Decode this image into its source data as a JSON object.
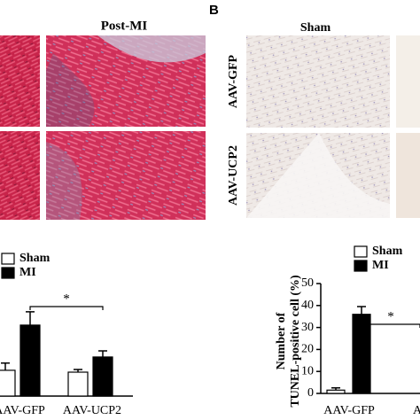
{
  "panels": {
    "post_mi_title": "Post-MI",
    "b_label": "B",
    "sham_title": "Sham",
    "row_labels": [
      "AAV-GFP",
      "AAV-UCP2"
    ]
  },
  "chart_data": [
    {
      "type": "bar",
      "categories": [
        "AAV-GFP",
        "AAV-UCP2"
      ],
      "series": [
        {
          "name": "Sham",
          "color": "#ffffff",
          "values": [
            9.7,
            9
          ],
          "errors": [
            2.7,
            1
          ]
        },
        {
          "name": "MI",
          "color": "#000000",
          "values": [
            26.7,
            14.7
          ],
          "errors": [
            5,
            2.3
          ]
        }
      ],
      "ylim": [
        0,
        40
      ],
      "annotation": "*"
    },
    {
      "type": "bar",
      "y_label": [
        "Number of",
        "TUNEL-positive cell (%)"
      ],
      "categories": [
        "AAV-GFP",
        "A"
      ],
      "series": [
        {
          "name": "Sham",
          "color": "#ffffff",
          "values": [
            1.5,
            null
          ],
          "errors": [
            1,
            null
          ]
        },
        {
          "name": "MI",
          "color": "#000000",
          "values": [
            36,
            null
          ],
          "errors": [
            3.5,
            null
          ]
        }
      ],
      "ylim": [
        0,
        50
      ],
      "yticks": [
        0,
        10,
        20,
        30,
        40,
        50
      ],
      "annotation": "*"
    }
  ]
}
